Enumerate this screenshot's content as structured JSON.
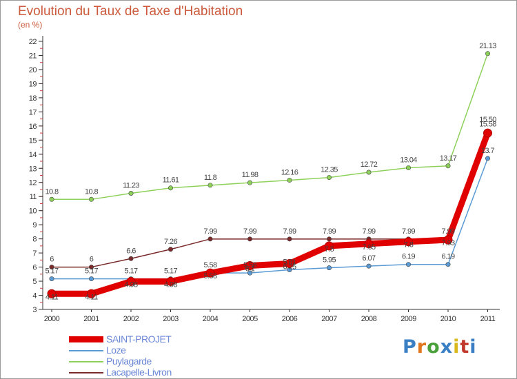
{
  "chart_data": {
    "type": "line",
    "title": "Evolution du Taux de Taxe d'Habitation",
    "subtitle": "(en %)",
    "x": [
      "2000",
      "2001",
      "2002",
      "2003",
      "2004",
      "2005",
      "2006",
      "2007",
      "2008",
      "2009",
      "2010",
      "2011"
    ],
    "yticks": [
      3,
      4,
      5,
      6,
      7,
      8,
      9,
      10,
      11,
      12,
      13,
      14,
      15,
      16,
      17,
      18,
      19,
      20,
      21,
      22
    ],
    "ylim": [
      3,
      22
    ],
    "grid": false,
    "legend_position": "bottom-left",
    "series": [
      {
        "name": "SAINT-PROJET",
        "color": "#e00000",
        "values": [
          4.11,
          4.11,
          4.98,
          4.98,
          5.58,
          6.1,
          6.25,
          7.5,
          7.65,
          7.8,
          7.93,
          15.5
        ],
        "labels": [
          "4.11",
          "4.11",
          "4.98",
          "4.98",
          "5.58",
          "6.1",
          "6.25",
          "7.5",
          "7.65",
          "7.8",
          "7.93",
          "15.50"
        ]
      },
      {
        "name": "Loze",
        "color": "#5b9bd5",
        "values": [
          5.17,
          5.17,
          5.17,
          5.17,
          5.58,
          5.58,
          5.81,
          5.95,
          6.07,
          6.19,
          6.19,
          13.7
        ],
        "labels": [
          "5.17",
          "5.17",
          "5.17",
          "5.17",
          "5.58",
          "5.58",
          "5.81",
          "5.95",
          "6.07",
          "6.19",
          "6.19",
          "13.7"
        ]
      },
      {
        "name": "Puylagarde",
        "color": "#8ed15a",
        "values": [
          10.8,
          10.8,
          11.23,
          11.61,
          11.8,
          11.98,
          12.16,
          12.35,
          12.72,
          13.04,
          13.17,
          21.13
        ],
        "labels": [
          "10.8",
          "10.8",
          "11.23",
          "11.61",
          "11.8",
          "11.98",
          "12.16",
          "12.35",
          "12.72",
          "13.04",
          "13.17",
          "21.13"
        ]
      },
      {
        "name": "Lacapelle-Livron",
        "color": "#7a2a2a",
        "values": [
          6,
          6,
          6.6,
          7.26,
          7.99,
          7.99,
          7.99,
          7.99,
          7.99,
          7.99,
          7.99,
          15.58
        ],
        "labels": [
          "6",
          "6",
          "6.6",
          "7.26",
          "7.99",
          "7.99",
          "7.99",
          "7.99",
          "7.99",
          "7.99",
          "7.99",
          "15.58"
        ]
      }
    ]
  },
  "logo": {
    "text": "Proxiti",
    "colors": [
      "#3a7fc4",
      "#e0761e",
      "#4aa03a",
      "#3a7fc4",
      "#d9b81e",
      "#c0392b",
      "#3a7fc4"
    ]
  }
}
